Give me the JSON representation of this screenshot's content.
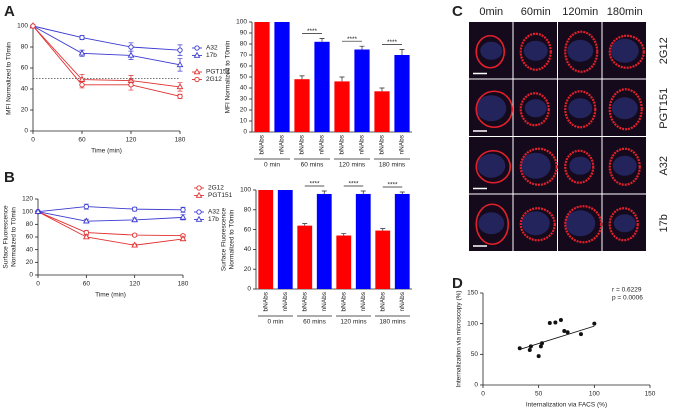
{
  "panel_labels": [
    "A",
    "B",
    "C",
    "D"
  ],
  "microscopy": {
    "columns": [
      "0min",
      "60min",
      "120min",
      "180min"
    ],
    "rows": [
      "2G12",
      "PGT151",
      "A32",
      "17b"
    ]
  },
  "chart_data": [
    {
      "type": "line",
      "xlabel": "Time (min)",
      "ylabel": [
        "MFI Normalized to T0min"
      ],
      "x": [
        0,
        60,
        120,
        180
      ],
      "xlim": [
        0,
        180
      ],
      "xticks": [
        0,
        60,
        120,
        180
      ],
      "ylim": [
        0,
        100
      ],
      "yticks": [
        0,
        20,
        40,
        60,
        80,
        100
      ],
      "reference_line": 50,
      "series": [
        {
          "name": "A32",
          "color": "#3a3ad0",
          "marker": "circle",
          "values": [
            100,
            89,
            80,
            77
          ],
          "errors": [
            0,
            2,
            4,
            5
          ]
        },
        {
          "name": "17b",
          "color": "#3a3ad0",
          "marker": "triangle",
          "values": [
            100,
            74,
            72,
            63
          ],
          "errors": [
            0,
            3,
            4,
            6
          ]
        },
        {
          "name": "PGT151",
          "color": "#e03030",
          "marker": "triangle",
          "values": [
            100,
            49,
            48,
            42
          ],
          "errors": [
            0,
            5,
            5,
            4
          ]
        },
        {
          "name": "2G12",
          "color": "#e03030",
          "marker": "circle",
          "values": [
            100,
            44,
            44,
            33
          ],
          "errors": [
            0,
            3,
            5,
            2
          ]
        }
      ]
    },
    {
      "type": "bar",
      "ylabel": [
        "MFI Normalized to T0min"
      ],
      "categories": [
        "bNAbs",
        "nNAbs",
        "bNAbs",
        "nNAbs",
        "bNAbs",
        "nNAbs",
        "bNAbs",
        "nNAbs"
      ],
      "groups": [
        "0 min",
        "60 mins",
        "120 mins",
        "180 mins"
      ],
      "values": [
        100,
        100,
        48,
        82,
        46,
        75,
        37,
        70
      ],
      "errors": [
        0,
        0,
        3,
        3,
        4,
        3,
        3,
        5
      ],
      "colors": [
        "#ff0000",
        "#0000ff",
        "#ff0000",
        "#0000ff",
        "#ff0000",
        "#0000ff",
        "#ff0000",
        "#0000ff"
      ],
      "annotations": [
        "****",
        "****",
        "****"
      ],
      "ylim": [
        0,
        100
      ],
      "yticks": [
        0,
        10,
        20,
        30,
        40,
        50,
        60,
        70,
        80,
        90,
        100
      ]
    },
    {
      "type": "line",
      "xlabel": "Time (min)",
      "ylabel": [
        "Surface Fluorescence",
        "Normalized to T0min"
      ],
      "x": [
        0,
        60,
        120,
        180
      ],
      "xlim": [
        0,
        180
      ],
      "xticks": [
        0,
        60,
        120,
        180
      ],
      "ylim": [
        0,
        120
      ],
      "yticks": [
        0,
        20,
        40,
        60,
        80,
        100,
        120
      ],
      "series": [
        {
          "name": "2G12",
          "color": "#e03030",
          "marker": "circle",
          "values": [
            100,
            67,
            63,
            62
          ],
          "errors": [
            0,
            3,
            2,
            2
          ]
        },
        {
          "name": "PGT151",
          "color": "#e03030",
          "marker": "triangle",
          "values": [
            100,
            60,
            47,
            57
          ],
          "errors": [
            0,
            2,
            2,
            3
          ]
        },
        {
          "name": "A32",
          "color": "#3a3ad0",
          "marker": "circle",
          "values": [
            100,
            108,
            104,
            103
          ],
          "errors": [
            0,
            4,
            3,
            4
          ]
        },
        {
          "name": "17b",
          "color": "#3a3ad0",
          "marker": "triangle",
          "values": [
            100,
            85,
            87,
            91
          ],
          "errors": [
            0,
            3,
            3,
            4
          ]
        }
      ]
    },
    {
      "type": "bar",
      "ylabel": [
        "Surface Fluorescence",
        "Normalized to T0min"
      ],
      "categories": [
        "bNAbs",
        "nNAbs",
        "bNAbs",
        "nNAbs",
        "bNAbs",
        "nNAbs",
        "bNAbs",
        "nNAbs"
      ],
      "groups": [
        "0 min",
        "60 mins",
        "120 mins",
        "180 mins"
      ],
      "values": [
        100,
        100,
        64,
        96,
        54,
        96,
        59,
        96
      ],
      "errors": [
        0,
        0,
        2,
        3,
        2,
        3,
        2,
        2
      ],
      "colors": [
        "#ff0000",
        "#0000ff",
        "#ff0000",
        "#0000ff",
        "#ff0000",
        "#0000ff",
        "#ff0000",
        "#0000ff"
      ],
      "annotations": [
        "****",
        "****",
        "****"
      ],
      "ylim": [
        0,
        100
      ],
      "yticks": [
        0,
        20,
        40,
        60,
        80,
        100
      ]
    },
    {
      "type": "scatter",
      "xlabel": "Internalization via FACS (%)",
      "ylabel": [
        "Internalization via microscopy (%)"
      ],
      "annotations": [
        "r = 0.6229",
        "p = 0.0006"
      ],
      "x": [
        33,
        42,
        43,
        50,
        52,
        53,
        60,
        65,
        70,
        73,
        76,
        88,
        100
      ],
      "y": [
        60,
        57,
        63,
        47,
        63,
        68,
        101,
        102,
        106,
        88,
        86,
        83,
        100
      ],
      "color": "#111111",
      "fit_line": {
        "x": [
          33,
          100
        ],
        "y": [
          58,
          96
        ]
      },
      "xlim": [
        0,
        150
      ],
      "xticks": [
        0,
        50,
        100,
        150
      ],
      "ylim": [
        0,
        150
      ],
      "yticks": [
        0,
        50,
        100,
        150
      ]
    }
  ]
}
